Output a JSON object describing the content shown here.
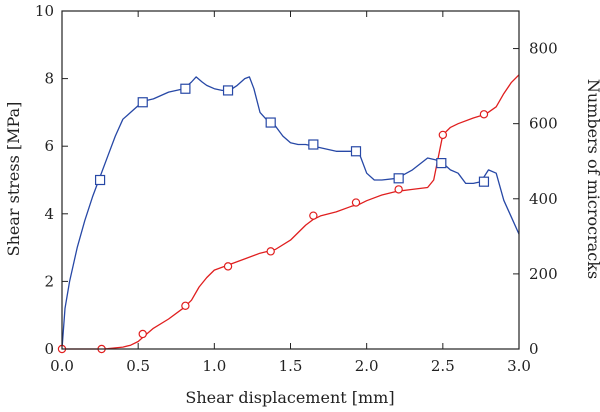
{
  "chart_data": {
    "type": "line",
    "xlabel": "Shear displacement [mm]",
    "ylabel_left": "Shear stress [MPa]",
    "ylabel_right": "Numbers of microcracks",
    "xlim": [
      0,
      3.0
    ],
    "ylim_left": [
      0,
      10
    ],
    "ylim_right": [
      0,
      900
    ],
    "x_ticks": [
      "0.0",
      "0.5",
      "1.0",
      "1.5",
      "2.0",
      "2.5",
      "3.0"
    ],
    "y_left_ticks": [
      "0",
      "2",
      "4",
      "6",
      "8",
      "10"
    ],
    "y_right_ticks": [
      "0",
      "200",
      "400",
      "600",
      "800"
    ],
    "grid": false,
    "series": [
      {
        "axis": "left",
        "color": "#2748a6",
        "marker": "square",
        "x": [
          0.0,
          0.02,
          0.05,
          0.1,
          0.15,
          0.2,
          0.25,
          0.3,
          0.35,
          0.4,
          0.45,
          0.5,
          0.55,
          0.6,
          0.7,
          0.8,
          0.85,
          0.88,
          0.92,
          0.95,
          1.0,
          1.05,
          1.1,
          1.15,
          1.2,
          1.23,
          1.26,
          1.3,
          1.35,
          1.4,
          1.45,
          1.5,
          1.55,
          1.6,
          1.7,
          1.8,
          1.9,
          1.95,
          2.0,
          2.05,
          2.1,
          2.2,
          2.3,
          2.4,
          2.45,
          2.5,
          2.55,
          2.6,
          2.65,
          2.7,
          2.75,
          2.8,
          2.85,
          2.9,
          2.95,
          3.0
        ],
        "y": [
          0.0,
          1.2,
          2.0,
          3.0,
          3.8,
          4.5,
          5.1,
          5.7,
          6.3,
          6.8,
          7.0,
          7.2,
          7.35,
          7.4,
          7.6,
          7.7,
          7.9,
          8.05,
          7.9,
          7.8,
          7.7,
          7.65,
          7.65,
          7.8,
          8.0,
          8.05,
          7.7,
          7.0,
          6.75,
          6.6,
          6.3,
          6.1,
          6.05,
          6.05,
          5.95,
          5.85,
          5.85,
          5.8,
          5.2,
          5.0,
          5.0,
          5.05,
          5.3,
          5.65,
          5.6,
          5.5,
          5.3,
          5.2,
          4.9,
          4.9,
          4.95,
          5.3,
          5.2,
          4.4,
          3.9,
          3.4
        ],
        "marker_x": [
          0.25,
          0.53,
          0.81,
          1.09,
          1.37,
          1.65,
          1.93,
          2.21,
          2.49,
          2.77
        ],
        "marker_y": [
          5.0,
          7.3,
          7.7,
          7.65,
          6.7,
          6.05,
          5.85,
          5.05,
          5.5,
          4.95
        ]
      },
      {
        "axis": "right",
        "color": "#e01f1f",
        "marker": "circle",
        "x": [
          0.0,
          0.25,
          0.3,
          0.4,
          0.45,
          0.5,
          0.55,
          0.6,
          0.7,
          0.8,
          0.85,
          0.9,
          0.95,
          1.0,
          1.1,
          1.2,
          1.3,
          1.4,
          1.5,
          1.55,
          1.6,
          1.65,
          1.7,
          1.8,
          1.9,
          1.95,
          2.0,
          2.1,
          2.2,
          2.3,
          2.4,
          2.44,
          2.46,
          2.5,
          2.55,
          2.6,
          2.7,
          2.78,
          2.85,
          2.9,
          2.95,
          3.0
        ],
        "y": [
          0,
          0,
          1,
          5,
          10,
          20,
          38,
          55,
          80,
          110,
          130,
          165,
          190,
          210,
          225,
          240,
          255,
          265,
          290,
          310,
          330,
          345,
          355,
          365,
          380,
          385,
          395,
          410,
          420,
          425,
          430,
          450,
          490,
          570,
          590,
          600,
          615,
          625,
          645,
          680,
          710,
          730
        ],
        "marker_x": [
          0.0,
          0.26,
          0.53,
          0.81,
          1.09,
          1.37,
          1.65,
          1.93,
          2.21,
          2.5,
          2.77
        ],
        "marker_y": [
          0,
          0,
          40,
          115,
          220,
          260,
          355,
          390,
          425,
          570,
          625
        ]
      }
    ]
  }
}
